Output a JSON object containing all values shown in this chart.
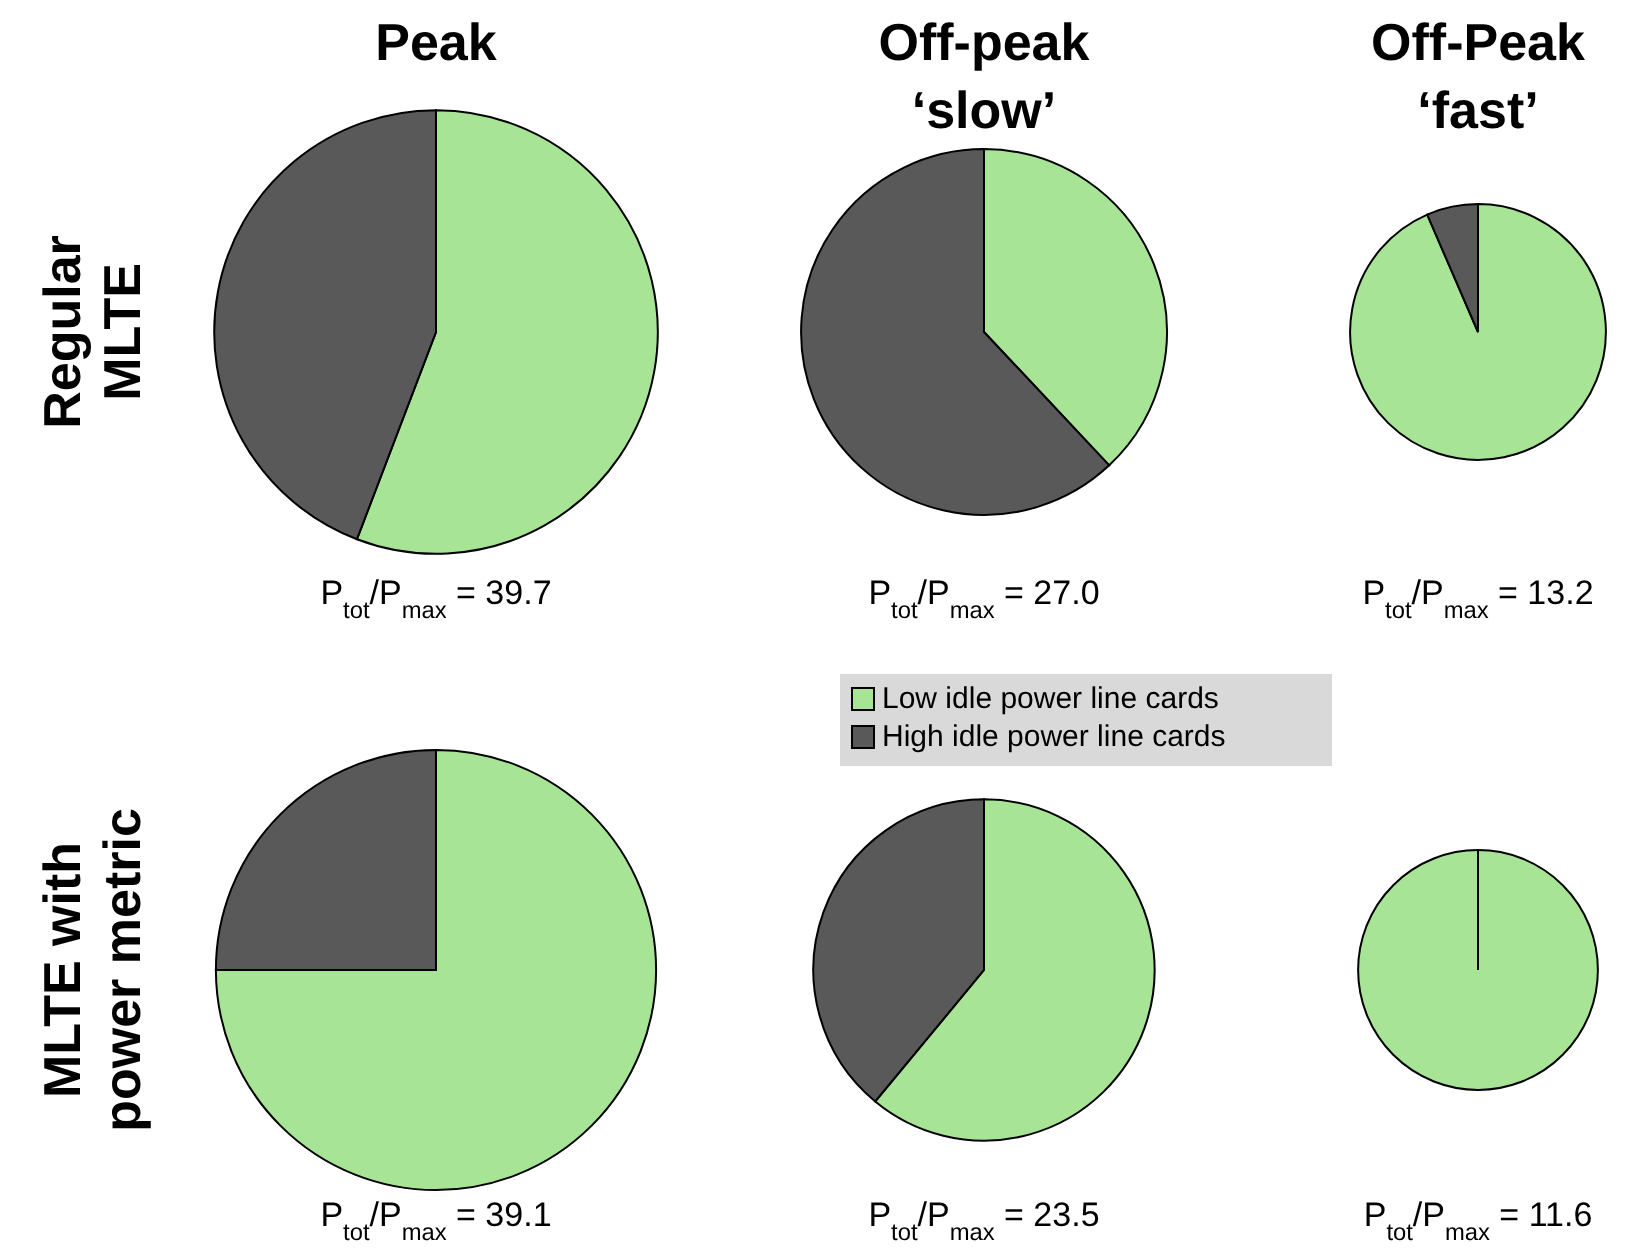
{
  "chart_data": [
    {
      "type": "pie",
      "title": "Peak",
      "ylabel": "Regular MLTE",
      "categories": [
        "Low idle power line cards",
        "High idle power line cards"
      ],
      "values": [
        55.8,
        44.2
      ],
      "colors": [
        "#a8e496",
        "#595959"
      ],
      "annotations": [
        "P$_{tot}$/P$_{max}$ = 39.7"
      ],
      "legend": "bottom right"
    },
    {
      "type": "pie",
      "title": "Off-peak ‘slow’",
      "categories": [
        null,
        null
      ],
      "values": [
        38,
        62
      ],
      "colors": [
        "#a8e496",
        "#595959"
      ],
      "annotations": [
        "P$_{tot}$/P$_{max}$ = 27.0"
      ]
    },
    {
      "type": "pie",
      "title": "Off-Peak ‘fast’",
      "categories": [
        null,
        null
      ],
      "values": [
        93.5,
        6.5
      ],
      "colors": [
        "#a8e496",
        "#595959"
      ],
      "annotations": [
        "P$_{tot}$/P$_{max}$ = 13.2"
      ]
    },
    {
      "type": "pie",
      "ylabel": "MLTE with power metric",
      "categories": [
        null,
        null
      ],
      "values": [
        75,
        25
      ],
      "colors": [
        "#a8e496",
        "#595959"
      ],
      "annotations": [
        "P$_{tot}$/P$_{max}$ = 39.1"
      ]
    },
    {
      "type": "pie",
      "categories": [
        null,
        null
      ],
      "values": [
        61,
        39
      ],
      "colors": [
        "#a8e496",
        "#595959"
      ],
      "annotations": [
        "P$_{tot}$/P$_{max}$ = 23.5"
      ]
    },
    {
      "type": "pie",
      "categories": [
        null,
        null
      ],
      "values": [
        100,
        0
      ],
      "colors": [
        "#a8e496",
        "#595959"
      ],
      "annotations": [
        "P$_{tot}$/P$_{max}$ = 11.6"
      ]
    }
  ]
}
